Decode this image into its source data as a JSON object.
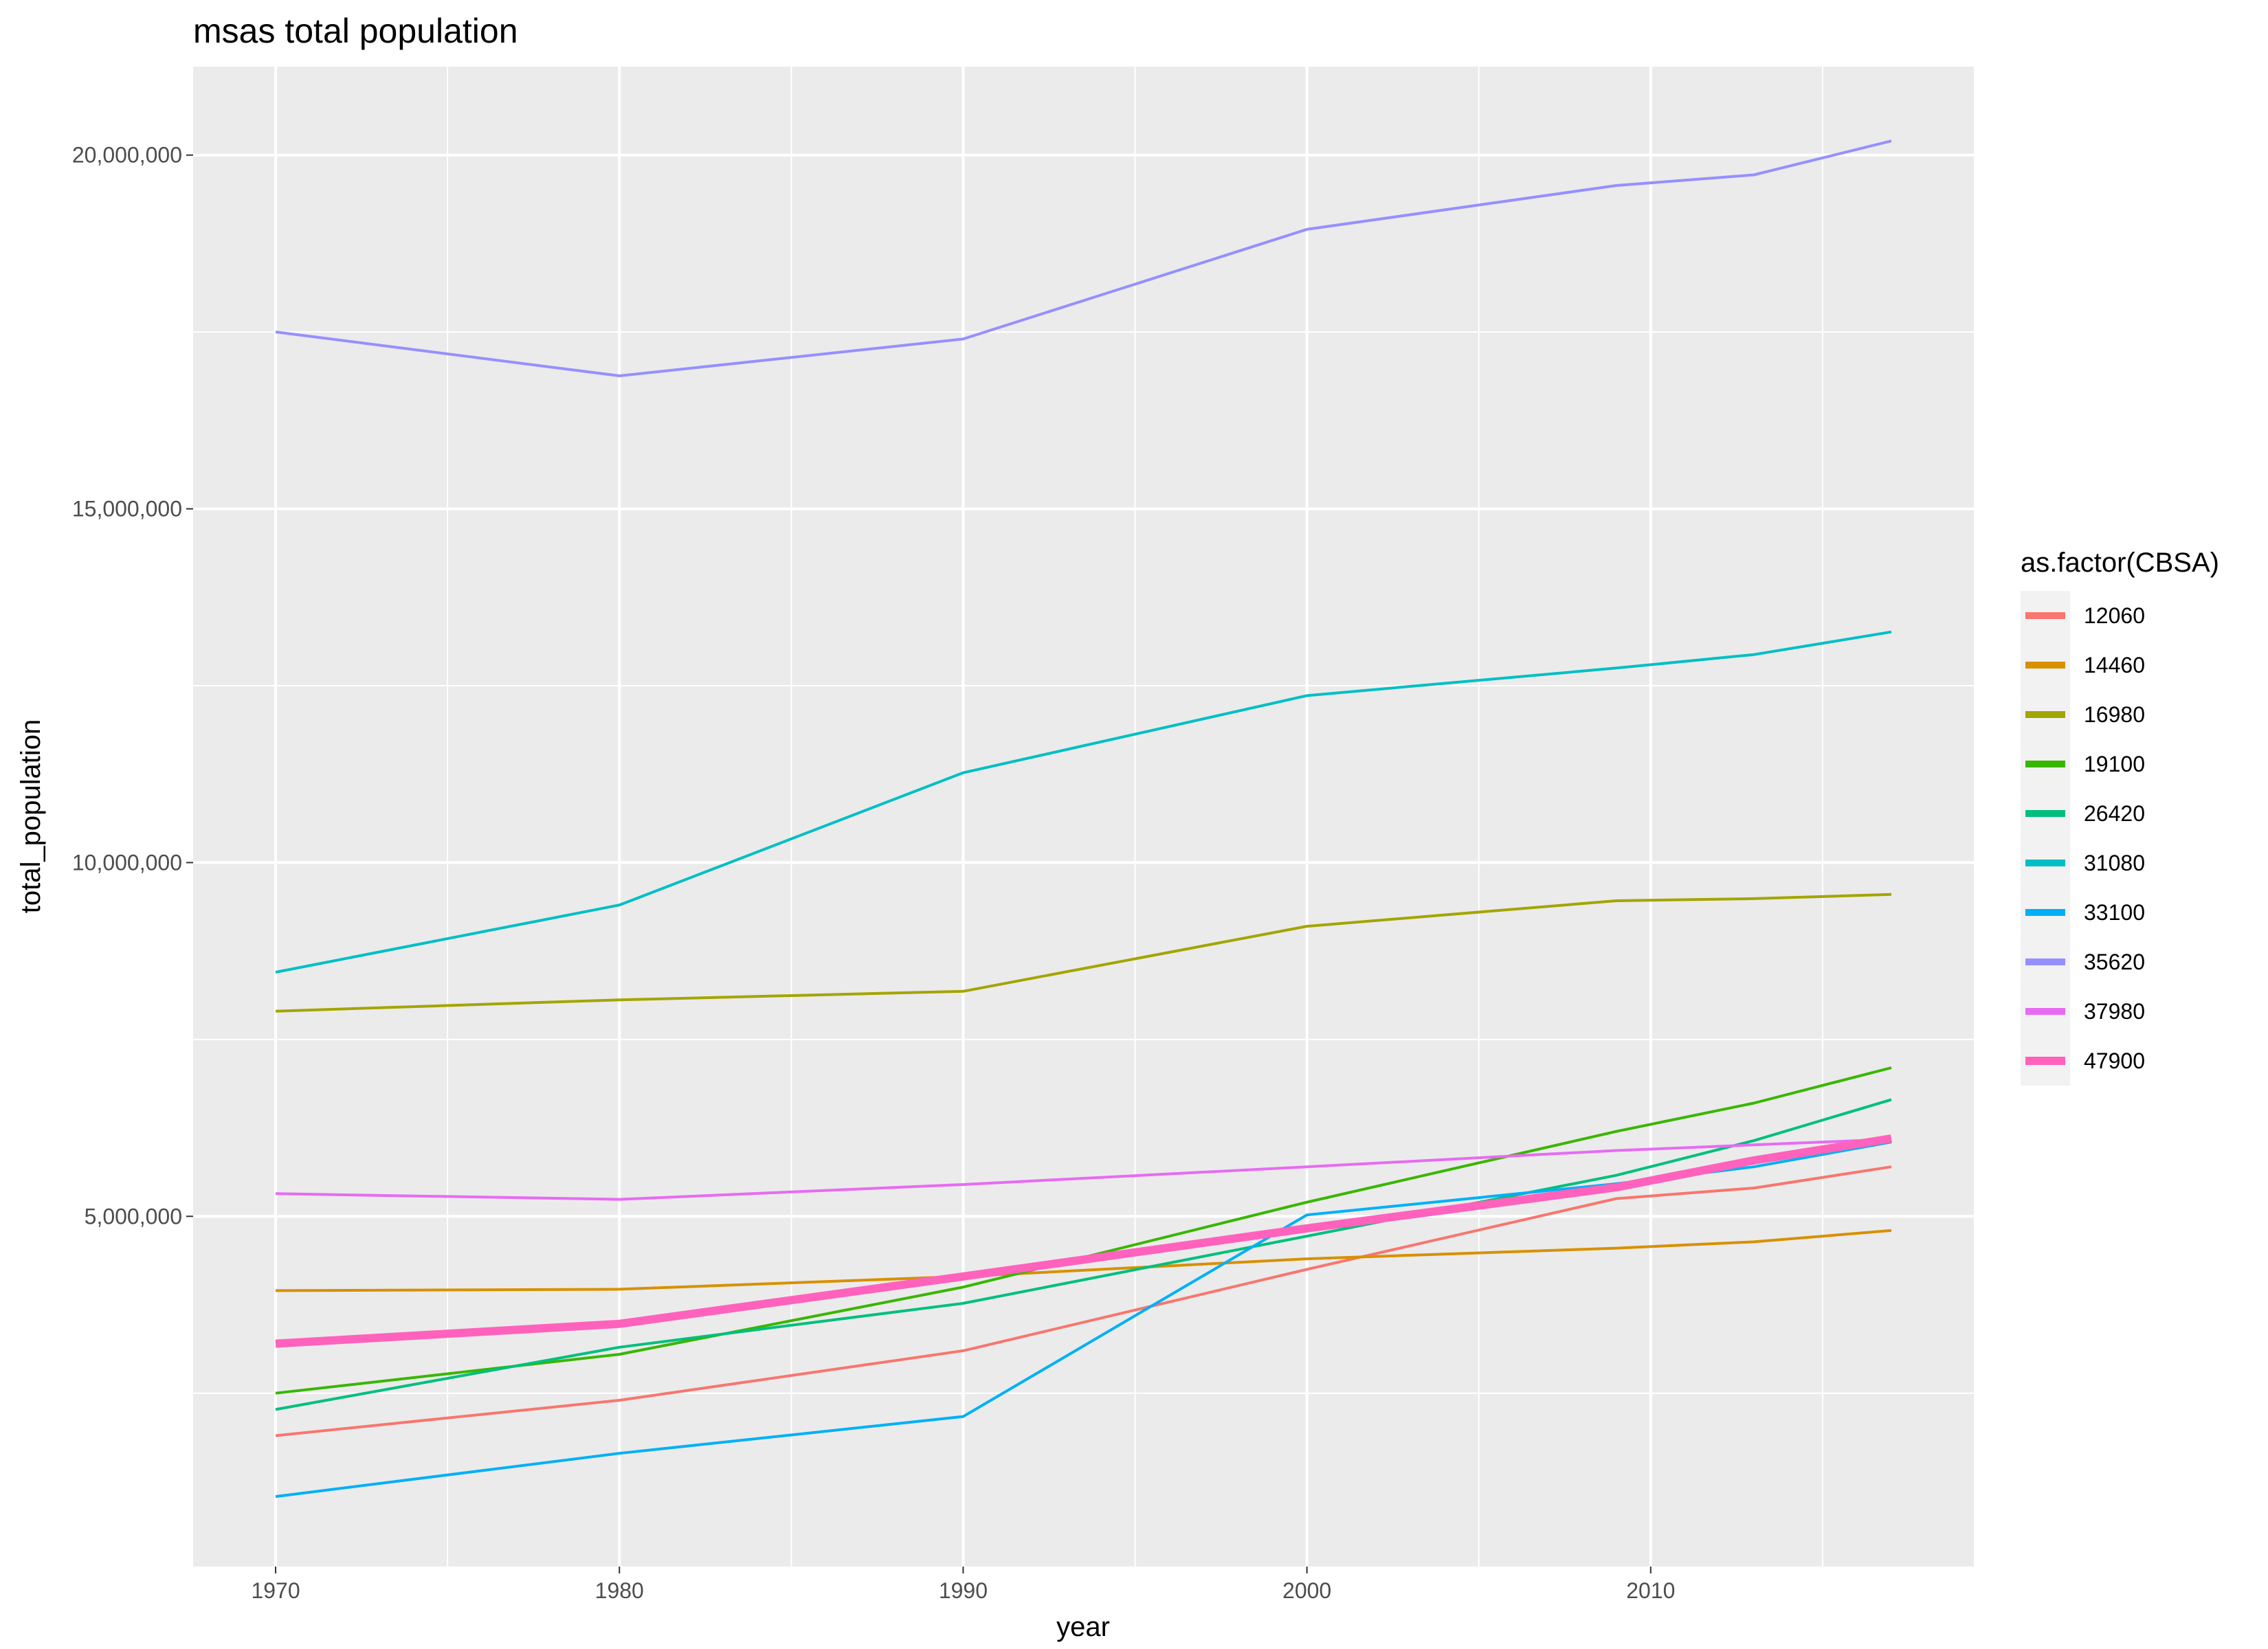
{
  "chart_data": {
    "type": "line",
    "title": "msas total population",
    "xlabel": "year",
    "ylabel": "total_population",
    "xlim": [
      1967.6,
      2019.4
    ],
    "ylim": [
      50000,
      21250000
    ],
    "x_ticks": [
      1970,
      1980,
      1990,
      2000,
      2010
    ],
    "x_tick_labels": [
      "1970",
      "1980",
      "1990",
      "2000",
      "2010"
    ],
    "x_minor_ticks": [
      1975,
      1985,
      1995,
      2005,
      2015
    ],
    "y_ticks": [
      5000000,
      10000000,
      15000000,
      20000000
    ],
    "y_tick_labels": [
      "5,000,000",
      "10,000,000",
      "15,000,000",
      "20,000,000"
    ],
    "y_minor_ticks": [
      2500000,
      7500000,
      12500000,
      17500000
    ],
    "grid": true,
    "background": "#ebebeb",
    "legend": {
      "title": "as.factor(CBSA)",
      "position": "right"
    },
    "x": [
      1970,
      1980,
      1990,
      2000,
      2009,
      2013,
      2017
    ],
    "series": [
      {
        "name": "12060",
        "color": "#f8766d",
        "width": "normal",
        "values": [
          1900000,
          2400000,
          3100000,
          4250000,
          5250000,
          5400000,
          5700000
        ]
      },
      {
        "name": "14460",
        "color": "#d89000",
        "width": "normal",
        "values": [
          3950000,
          3970000,
          4150000,
          4400000,
          4550000,
          4640000,
          4800000
        ]
      },
      {
        "name": "16980",
        "color": "#a3a500",
        "width": "normal",
        "values": [
          7900000,
          8060000,
          8180000,
          9100000,
          9460000,
          9490000,
          9550000
        ]
      },
      {
        "name": "19100",
        "color": "#39b600",
        "width": "normal",
        "values": [
          2500000,
          3050000,
          4000000,
          5200000,
          6200000,
          6600000,
          7100000
        ]
      },
      {
        "name": "26420",
        "color": "#00bf7d",
        "width": "normal",
        "values": [
          2270000,
          3150000,
          3770000,
          4720000,
          5580000,
          6070000,
          6650000
        ]
      },
      {
        "name": "31080",
        "color": "#00bfc4",
        "width": "normal",
        "values": [
          8450000,
          9400000,
          11270000,
          12360000,
          12750000,
          12940000,
          13260000
        ]
      },
      {
        "name": "33100",
        "color": "#00b0f6",
        "width": "normal",
        "values": [
          1040000,
          1650000,
          2170000,
          5020000,
          5460000,
          5700000,
          6050000
        ]
      },
      {
        "name": "35620",
        "color": "#9590ff",
        "width": "normal",
        "values": [
          17500000,
          16880000,
          17400000,
          18950000,
          19570000,
          19720000,
          20200000
        ]
      },
      {
        "name": "37980",
        "color": "#e76bf3",
        "width": "normal",
        "values": [
          5320000,
          5240000,
          5450000,
          5700000,
          5930000,
          6010000,
          6090000
        ]
      },
      {
        "name": "47900",
        "color": "#ff62bc",
        "width": "thick",
        "values": [
          3200000,
          3480000,
          4150000,
          4830000,
          5410000,
          5790000,
          6100000
        ]
      }
    ]
  }
}
